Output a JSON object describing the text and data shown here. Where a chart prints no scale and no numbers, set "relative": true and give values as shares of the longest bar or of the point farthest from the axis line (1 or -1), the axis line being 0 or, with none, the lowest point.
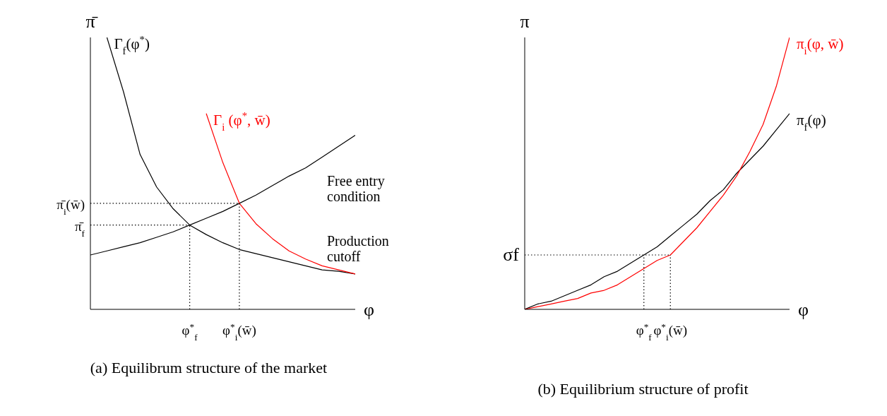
{
  "chart_data": [
    {
      "type": "line",
      "title": "(a) Equilibrum structure of the market",
      "xlabel": "φ",
      "ylabel": "π̄",
      "relative": true,
      "categories": [
        null,
        null,
        null,
        null,
        null,
        null,
        "φ$^{*}$$_{f}$",
        null,
        null,
        "φ$^{*}$$_{i}$(w̄)",
        null,
        null,
        null,
        null,
        null,
        null,
        null
      ],
      "legend": false,
      "grid": false,
      "marker": "none",
      "line_style": "solid",
      "series": [
        {
          "color": "#000000",
          "values": [
            0.2,
            0.215,
            0.23,
            0.245,
            0.265,
            0.285,
            0.31,
            0.335,
            0.36,
            0.39,
            0.42,
            0.455,
            0.49,
            0.52,
            0.56,
            0.6,
            0.64
          ]
        },
        {
          "name": "Γ$_{f}$(φ$^{*}$)",
          "color": "#000000",
          "values": [
            null,
            1.0,
            0.8,
            0.57,
            0.45,
            0.37,
            0.31,
            0.275,
            0.245,
            0.22,
            0.205,
            0.19,
            0.175,
            0.16,
            0.145,
            0.14,
            0.13
          ]
        },
        {
          "name": "Γ$_{i}$ (φ$^{*}$, w̄)",
          "color": "#ff0000",
          "values": [
            null,
            null,
            null,
            null,
            null,
            null,
            null,
            0.72,
            0.54,
            0.39,
            0.315,
            0.26,
            0.215,
            0.185,
            0.16,
            0.145,
            0.13
          ]
        },
        {
          "type": "line",
          "name": "π̄$_{i}$(w̄)",
          "line_style": "dotted",
          "color": "#000000",
          "values": [
            0.39,
            0.39,
            0.39,
            0.39,
            0.39,
            0.39,
            0.39,
            0.39,
            0.39,
            0.39,
            null,
            null,
            null,
            null,
            null,
            null,
            null
          ]
        },
        {
          "type": "line",
          "name": "π̄$_{f}$",
          "line_style": "dotted",
          "color": "#000000",
          "values": [
            0.31,
            0.31,
            0.31,
            0.31,
            0.31,
            0.31,
            0.31,
            null,
            null,
            null,
            null,
            null,
            null,
            null,
            null,
            null,
            null
          ]
        },
        {
          "type": "line",
          "line_style": "dotted",
          "color": "#000000",
          "x": [
            "φ$^{*}$$_{f}$",
            "φ$^{*}$$_{f}$"
          ],
          "values": [
            0,
            0.31
          ]
        },
        {
          "type": "line",
          "line_style": "dotted",
          "color": "#000000",
          "x": [
            "φ$^{*}$$_{i}$(w̄)",
            "φ$^{*}$$_{i}$(w̄)"
          ],
          "values": [
            0,
            0.39
          ]
        }
      ],
      "annotations": [
        "Free entry condition",
        "Production cutoff"
      ]
    },
    {
      "type": "line",
      "title": "(b) Equilibrium structure of profit",
      "xlabel": "φ",
      "ylabel": "π",
      "relative": true,
      "categories": [
        null,
        null,
        null,
        null,
        null,
        null,
        null,
        null,
        null,
        "φ$^{*}$$_{f}$",
        null,
        "φ$^{*}$$_{i}$(w̄)",
        null,
        null,
        null,
        null,
        null,
        null,
        null,
        null,
        null
      ],
      "legend": false,
      "grid": false,
      "marker": "none",
      "line_style": "solid",
      "series": [
        {
          "name": "π$_{f}$(φ)",
          "color": "#000000",
          "values": [
            0,
            0.02,
            0.03,
            0.05,
            0.07,
            0.09,
            0.12,
            0.14,
            0.17,
            0.2,
            0.23,
            0.27,
            0.31,
            0.35,
            0.4,
            0.44,
            0.5,
            0.55,
            0.6,
            0.66,
            0.72
          ]
        },
        {
          "name": "π$_{i}$(φ, w̄)",
          "color": "#ff0000",
          "values": [
            0,
            0.01,
            0.02,
            0.03,
            0.04,
            0.06,
            0.07,
            0.09,
            0.12,
            0.15,
            0.18,
            0.2,
            0.25,
            0.3,
            0.36,
            0.42,
            0.49,
            0.58,
            0.68,
            0.82,
            1.0
          ]
        },
        {
          "type": "line",
          "name": "σf",
          "line_style": "dotted",
          "color": "#000000",
          "values": [
            0.2,
            0.2,
            0.2,
            0.2,
            0.2,
            0.2,
            0.2,
            0.2,
            0.2,
            0.2,
            0.2,
            0.2,
            null,
            null,
            null,
            null,
            null,
            null,
            null,
            null,
            null
          ]
        },
        {
          "type": "line",
          "line_style": "dotted",
          "color": "#000000",
          "x": [
            "φ$^{*}$$_{f}$",
            "φ$^{*}$$_{f}$"
          ],
          "values": [
            0,
            0.2
          ]
        },
        {
          "type": "line",
          "line_style": "dotted",
          "color": "#000000",
          "x": [
            "φ$^{*}$$_{i}$(w̄)",
            "φ$^{*}$$_{i}$(w̄)"
          ],
          "values": [
            0,
            0.2
          ]
        }
      ]
    }
  ]
}
